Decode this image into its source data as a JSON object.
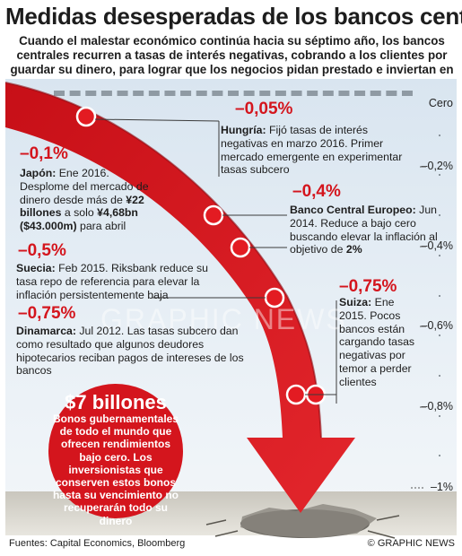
{
  "header": {
    "title": "Medidas desesperadas de los bancos centrales",
    "subtitle": "Cuando el malestar económico continúa hacia su séptimo año, los bancos centrales recurren a tasas de interés negativas, cobrando a los clientes por guardar su dinero, para lograr que los negocios pidan prestado e inviertan en crecimiento"
  },
  "scale": {
    "labels": [
      "Cero",
      "–0,2%",
      "–0,4%",
      "–0,6%",
      "–0,8%",
      "–1%"
    ]
  },
  "watermark": "GRAPHIC NEWS",
  "entries": {
    "hungria": {
      "pct": "–0,05%",
      "name": "Hungría:",
      "text": "Fijó tasas de interés negativas en marzo 2016. Primer mercado emergente en experimentar tasas subcero"
    },
    "japon": {
      "pct": "–0,1%",
      "name": "Japón:",
      "text1": "Ene 2016. Desplome del mercado de dinero desde más de",
      "bold1": "¥22 billones",
      "text2": "a solo",
      "bold2": "¥4,68bn ($43.000m)",
      "text3": "para abril"
    },
    "bce": {
      "pct": "–0,4%",
      "name": "Banco Central Europeo:",
      "text1": "Jun 2014. Reduce a bajo cero buscando elevar la inflación al objetivo de",
      "bold1": "2%"
    },
    "suecia": {
      "pct": "–0,5%",
      "name": "Suecia:",
      "text": "Feb 2015. Riksbank reduce su tasa repo de referencia para elevar la inflación persistentemente baja"
    },
    "suiza": {
      "pct": "–0,75%",
      "name": "Suiza:",
      "text": "Ene 2015. Pocos bancos están cargando tasas negativas por temor a perder clientes"
    },
    "dinamarca": {
      "pct": "–0,75%",
      "name": "Dinamarca:",
      "text": "Jul 2012. Las tasas subcero dan como resultado que algunos deudores hipotecarios reciban pagos de intereses de los bancos"
    }
  },
  "callout": {
    "amount": "$7 billones",
    "text": "Bonos gubernamentales de todo el mundo que ofrecen rendimientos bajo cero. Los inversionistas que conserven estos bonos hasta su vencimiento no recuperarán todo su dinero"
  },
  "footer": {
    "sources": "Fuentes: Capital Economics, Bloomberg",
    "credit": "© GRAPHIC NEWS"
  },
  "colors": {
    "red": "#d4151d",
    "panel": "#dfe8f1",
    "dash": "#8f9aa3"
  }
}
